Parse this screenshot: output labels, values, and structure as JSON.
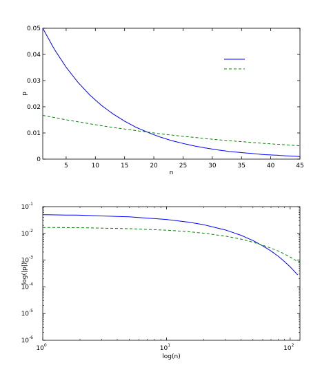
{
  "chart_data": [
    {
      "type": "line",
      "xlabel": "n",
      "ylabel": "p",
      "xlim": [
        1,
        45
      ],
      "ylim": [
        0,
        0.05
      ],
      "xticks": [
        5,
        10,
        15,
        20,
        25,
        30,
        35,
        40,
        45
      ],
      "yticks": [
        0,
        0.01,
        0.02,
        0.03,
        0.04,
        0.05
      ],
      "xtick_labels": [
        "5",
        "10",
        "15",
        "20",
        "25",
        "30",
        "35",
        "40",
        "45"
      ],
      "ytick_labels": [
        "0",
        "0.01",
        "0.02",
        "0.03",
        "0.04",
        "0.05"
      ],
      "grid": false,
      "legend_location": "top-right",
      "series": [
        {
          "color": "#0000ff",
          "style": "solid",
          "x": [
            1,
            3,
            5,
            7,
            9,
            11,
            13,
            15,
            17,
            19,
            21,
            23,
            25,
            27,
            29,
            31,
            33,
            35,
            37,
            39,
            41,
            43,
            45
          ],
          "y": [
            0.05,
            0.0419,
            0.0351,
            0.0294,
            0.0246,
            0.0206,
            0.0173,
            0.0145,
            0.0121,
            0.0102,
            0.0085,
            0.0071,
            0.006,
            0.005,
            0.0042,
            0.0035,
            0.0029,
            0.0025,
            0.0021,
            0.0017,
            0.0015,
            0.0012,
            0.001
          ]
        },
        {
          "color": "#008000",
          "style": "dashed",
          "x": [
            1,
            3,
            5,
            7,
            9,
            11,
            13,
            15,
            17,
            19,
            21,
            23,
            25,
            27,
            29,
            31,
            33,
            35,
            37,
            39,
            41,
            43,
            45
          ],
          "y": [
            0.0167,
            0.0159,
            0.015,
            0.0143,
            0.0135,
            0.0128,
            0.0121,
            0.0115,
            0.0109,
            0.0103,
            0.0097,
            0.0092,
            0.0087,
            0.0083,
            0.0078,
            0.0074,
            0.007,
            0.0067,
            0.0063,
            0.006,
            0.0057,
            0.0054,
            0.0051
          ]
        }
      ]
    },
    {
      "type": "line",
      "xlabel": "log(n)",
      "ylabel": "log(|p|)",
      "xscale": "log",
      "yscale": "log",
      "xlim": [
        1,
        120
      ],
      "ylim": [
        1e-06,
        0.1
      ],
      "xticks": [
        1,
        10,
        100
      ],
      "yticks": [
        1e-06,
        1e-05,
        0.0001,
        0.001,
        0.01,
        0.1
      ],
      "xtick_labels": [
        {
          "base": "10",
          "exp": "0"
        },
        {
          "base": "10",
          "exp": "1"
        },
        {
          "base": "10",
          "exp": "2"
        }
      ],
      "ytick_labels": [
        {
          "base": "10",
          "exp": "-6"
        },
        {
          "base": "10",
          "exp": "-5"
        },
        {
          "base": "10",
          "exp": "-4"
        },
        {
          "base": "10",
          "exp": "-3"
        },
        {
          "base": "10",
          "exp": "-2"
        },
        {
          "base": "10",
          "exp": "-1"
        }
      ],
      "grid": false,
      "series": [
        {
          "color": "#0000ff",
          "style": "solid",
          "x": [
            1,
            2,
            5,
            10,
            15,
            20,
            30,
            40,
            50,
            60,
            70,
            80,
            90,
            100,
            110,
            115
          ],
          "y": [
            0.05,
            0.0478,
            0.0417,
            0.0332,
            0.0264,
            0.0211,
            0.0134,
            0.0085,
            0.0054,
            0.0034,
            0.0022,
            0.0014,
            0.00088,
            0.00056,
            0.00035,
            0.00028
          ]
        },
        {
          "color": "#008000",
          "style": "dashed",
          "x": [
            1,
            2,
            5,
            10,
            15,
            20,
            30,
            40,
            50,
            60,
            70,
            80,
            90,
            100,
            110,
            120
          ],
          "y": [
            0.0167,
            0.0163,
            0.015,
            0.0132,
            0.0116,
            0.0102,
            0.0079,
            0.0061,
            0.0047,
            0.0036,
            0.0028,
            0.0022,
            0.0017,
            0.0013,
            0.001,
            0.0008
          ]
        }
      ]
    }
  ]
}
